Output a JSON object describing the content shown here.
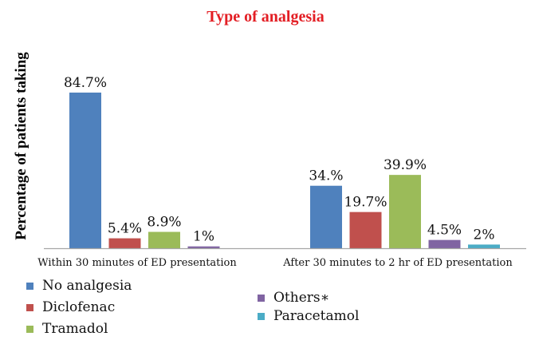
{
  "chart_data": {
    "type": "bar",
    "title": "Type of analgesia",
    "ylabel": "Percentage of patients taking",
    "xlabel": "",
    "ylim": [
      0,
      90
    ],
    "grid": false,
    "legend_placement": "bottom",
    "categories": [
      "Within 30 minutes of ED presentation",
      "After 30 minutes to 2 hr of ED presentation"
    ],
    "series": [
      {
        "name": "No analgesia",
        "color": "#4f81bd",
        "values": [
          84.7,
          34.0
        ],
        "labels": [
          "84.7%",
          "34.%"
        ]
      },
      {
        "name": "Diclofenac",
        "color": "#c0504d",
        "values": [
          5.4,
          19.7
        ],
        "labels": [
          "5.4%",
          "19.7%"
        ]
      },
      {
        "name": "Tramadol",
        "color": "#9bbb59",
        "values": [
          8.9,
          39.9
        ],
        "labels": [
          "8.9%",
          "39.9%"
        ]
      },
      {
        "name": "Others∗",
        "color": "#8064a2",
        "values": [
          1.0,
          4.5
        ],
        "labels": [
          "1%",
          "4.5%"
        ]
      },
      {
        "name": "Paracetamol",
        "color": "#4bacc6",
        "values": [
          null,
          2.0
        ],
        "labels": [
          "",
          "2%"
        ]
      }
    ]
  }
}
